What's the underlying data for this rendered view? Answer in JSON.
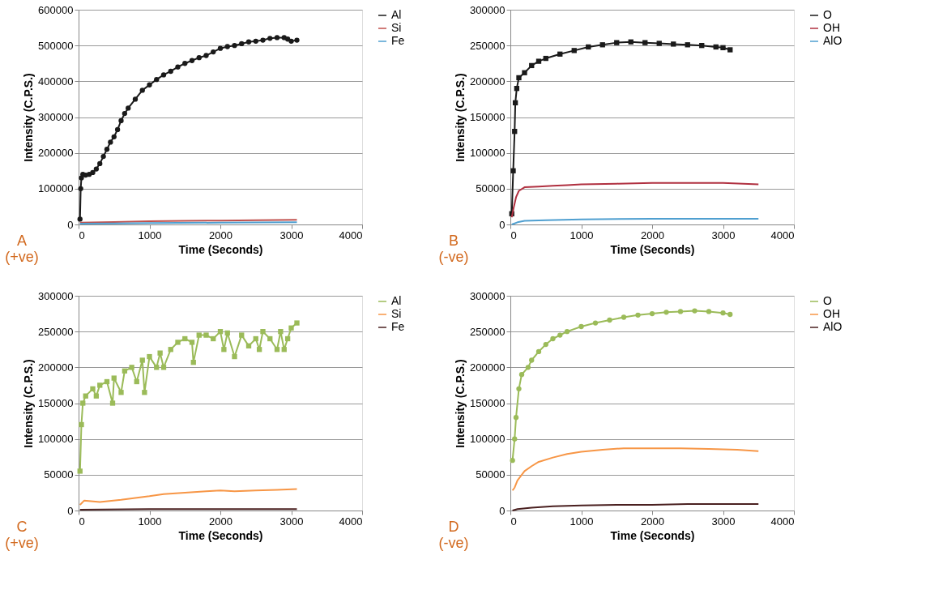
{
  "chart_data": [
    {
      "type": "line",
      "xlabel": "Time (Seconds)",
      "ylabel": "Intensity (C.P.S.)",
      "xlim": [
        0,
        4000
      ],
      "xticks": [
        0,
        1000,
        2000,
        3000,
        4000
      ],
      "ylim": [
        0,
        600000
      ],
      "yticks": [
        0,
        100000,
        200000,
        300000,
        400000,
        500000,
        600000
      ],
      "grid": "y",
      "legend": "right",
      "annotations": [
        "A (+ve)"
      ],
      "series": [
        {
          "name": "Al",
          "color": "#1a1a1a",
          "marker": "circle",
          "x": [
            20,
            30,
            40,
            60,
            100,
            150,
            200,
            250,
            300,
            350,
            400,
            450,
            500,
            550,
            600,
            650,
            700,
            800,
            900,
            1000,
            1100,
            1200,
            1300,
            1400,
            1500,
            1600,
            1700,
            1800,
            1900,
            2000,
            2100,
            2200,
            2300,
            2400,
            2500,
            2600,
            2700,
            2800,
            2900,
            2950,
            3000,
            3080
          ],
          "values": [
            15000,
            100000,
            130000,
            140000,
            138000,
            140000,
            145000,
            155000,
            170000,
            190000,
            210000,
            230000,
            245000,
            265000,
            290000,
            310000,
            325000,
            350000,
            375000,
            390000,
            405000,
            418000,
            428000,
            440000,
            450000,
            458000,
            466000,
            472000,
            482000,
            492000,
            497000,
            500000,
            505000,
            510000,
            512000,
            515000,
            520000,
            522000,
            522000,
            518000,
            512000,
            515000
          ]
        },
        {
          "name": "Si",
          "color": "#c0504d",
          "marker": "none",
          "x": [
            20,
            500,
            1000,
            1500,
            2000,
            2500,
            3080
          ],
          "values": [
            5000,
            7000,
            9000,
            10000,
            11000,
            12000,
            13000
          ]
        },
        {
          "name": "Fe",
          "color": "#4f9fd0",
          "marker": "none",
          "x": [
            20,
            500,
            1000,
            2000,
            3080
          ],
          "values": [
            2000,
            3000,
            4000,
            5000,
            6000
          ]
        }
      ]
    },
    {
      "type": "line",
      "xlabel": "Time (Seconds)",
      "ylabel": "Intensity (C.P.S.)",
      "xlim": [
        0,
        4000
      ],
      "xticks": [
        0,
        1000,
        2000,
        3000,
        4000
      ],
      "ylim": [
        0,
        300000
      ],
      "yticks": [
        0,
        50000,
        100000,
        150000,
        200000,
        250000,
        300000
      ],
      "grid": "y",
      "legend": "right",
      "annotations": [
        "B (-ve)"
      ],
      "series": [
        {
          "name": "O",
          "color": "#1a1a1a",
          "marker": "square",
          "x": [
            20,
            40,
            60,
            70,
            90,
            120,
            200,
            300,
            400,
            500,
            700,
            900,
            1100,
            1300,
            1500,
            1700,
            1900,
            2100,
            2300,
            2500,
            2700,
            2900,
            3000,
            3100
          ],
          "values": [
            15000,
            75000,
            130000,
            170000,
            190000,
            205000,
            212000,
            222000,
            228000,
            232000,
            238000,
            243000,
            248000,
            251000,
            254000,
            255000,
            254000,
            253000,
            252000,
            251000,
            250000,
            248000,
            247000,
            244000
          ]
        },
        {
          "name": "OH",
          "color": "#b03040",
          "marker": "none",
          "x": [
            20,
            50,
            80,
            120,
            200,
            400,
            600,
            800,
            1000,
            1500,
            2000,
            2500,
            3000,
            3500
          ],
          "values": [
            10000,
            25000,
            38000,
            47000,
            52000,
            53000,
            54000,
            55000,
            56000,
            57000,
            58000,
            58000,
            58000,
            56000
          ]
        },
        {
          "name": "AlO",
          "color": "#4f9fd0",
          "marker": "none",
          "x": [
            20,
            100,
            200,
            500,
            1000,
            2000,
            3000,
            3500
          ],
          "values": [
            0,
            3000,
            5000,
            6000,
            7000,
            8000,
            8000,
            8000
          ]
        }
      ]
    },
    {
      "type": "line",
      "xlabel": "Time (Seconds)",
      "ylabel": "Intensity (C.P.S.)",
      "xlim": [
        0,
        4000
      ],
      "xticks": [
        0,
        1000,
        2000,
        3000,
        4000
      ],
      "ylim": [
        0,
        300000
      ],
      "yticks": [
        0,
        50000,
        100000,
        150000,
        200000,
        250000,
        300000
      ],
      "grid": "y",
      "legend": "right",
      "annotations": [
        "C (+ve)"
      ],
      "series": [
        {
          "name": "Al",
          "color": "#9bbb59",
          "marker": "square",
          "x": [
            20,
            40,
            60,
            100,
            200,
            250,
            300,
            400,
            480,
            500,
            600,
            650,
            750,
            820,
            900,
            930,
            1000,
            1100,
            1150,
            1200,
            1300,
            1400,
            1500,
            1600,
            1620,
            1700,
            1800,
            1900,
            2000,
            2050,
            2100,
            2200,
            2300,
            2400,
            2500,
            2550,
            2600,
            2700,
            2800,
            2850,
            2900,
            2950,
            3000,
            3080
          ],
          "values": [
            55000,
            120000,
            150000,
            160000,
            170000,
            160000,
            175000,
            180000,
            150000,
            185000,
            165000,
            195000,
            200000,
            180000,
            210000,
            165000,
            215000,
            200000,
            220000,
            200000,
            225000,
            235000,
            240000,
            235000,
            207000,
            245000,
            245000,
            240000,
            250000,
            225000,
            248000,
            215000,
            245000,
            230000,
            240000,
            225000,
            250000,
            240000,
            225000,
            250000,
            225000,
            240000,
            255000,
            262000
          ]
        },
        {
          "name": "Si",
          "color": "#f79646",
          "marker": "none",
          "x": [
            20,
            80,
            300,
            600,
            1000,
            1200,
            1500,
            1800,
            2000,
            2200,
            2500,
            2800,
            3080
          ],
          "values": [
            8000,
            14000,
            12000,
            15000,
            20000,
            23000,
            25000,
            27000,
            28000,
            27000,
            28000,
            29000,
            30000
          ]
        },
        {
          "name": "Fe",
          "color": "#4a2020",
          "marker": "none",
          "x": [
            20,
            1000,
            2000,
            3080
          ],
          "values": [
            1000,
            2000,
            2000,
            2000
          ]
        }
      ]
    },
    {
      "type": "line",
      "xlabel": "Time (Seconds)",
      "ylabel": "Intensity (C.P.S.)",
      "xlim": [
        0,
        4000
      ],
      "xticks": [
        0,
        1000,
        2000,
        3000,
        4000
      ],
      "ylim": [
        0,
        300000
      ],
      "yticks": [
        0,
        50000,
        100000,
        150000,
        200000,
        250000,
        300000
      ],
      "grid": "y",
      "legend": "right",
      "annotations": [
        "D (-ve)"
      ],
      "series": [
        {
          "name": "O",
          "color": "#9bbb59",
          "marker": "circle",
          "x": [
            30,
            60,
            80,
            120,
            160,
            250,
            300,
            400,
            500,
            600,
            700,
            800,
            1000,
            1200,
            1400,
            1600,
            1800,
            2000,
            2200,
            2400,
            2600,
            2800,
            3000,
            3100
          ],
          "values": [
            70000,
            100000,
            130000,
            170000,
            190000,
            200000,
            210000,
            222000,
            232000,
            240000,
            245000,
            250000,
            257000,
            262000,
            266000,
            270000,
            273000,
            275000,
            277000,
            278000,
            279000,
            278000,
            276000,
            274000
          ]
        },
        {
          "name": "OH",
          "color": "#f79646",
          "marker": "none",
          "x": [
            30,
            60,
            100,
            200,
            300,
            400,
            600,
            800,
            1000,
            1300,
            1600,
            2000,
            2400,
            2800,
            3200,
            3500
          ],
          "values": [
            28000,
            32000,
            42000,
            55000,
            62000,
            68000,
            74000,
            79000,
            82000,
            85000,
            87000,
            87000,
            87000,
            86000,
            85000,
            83000
          ]
        },
        {
          "name": "AlO",
          "color": "#4a2020",
          "marker": "none",
          "x": [
            30,
            100,
            300,
            600,
            1000,
            1500,
            2000,
            2500,
            3000,
            3500
          ],
          "values": [
            0,
            2000,
            4000,
            6000,
            7000,
            8000,
            8000,
            9000,
            9000,
            9000
          ]
        }
      ]
    }
  ]
}
